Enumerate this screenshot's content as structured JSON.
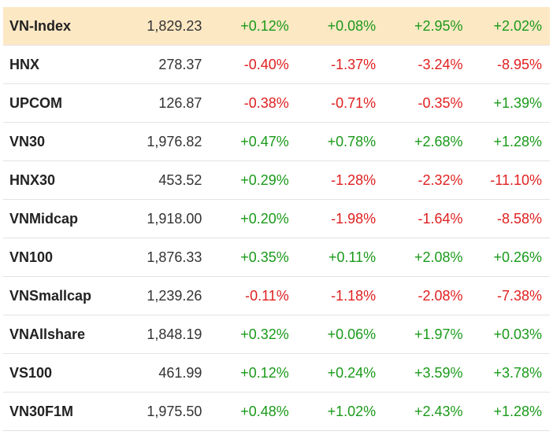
{
  "table": {
    "rows": [
      {
        "name": "VN-Index",
        "value": "1,829.23",
        "changes": [
          "+0.12%",
          "+0.08%",
          "+2.95%",
          "+2.02%"
        ],
        "highlight": true
      },
      {
        "name": "HNX",
        "value": "278.37",
        "changes": [
          "-0.40%",
          "-1.37%",
          "-3.24%",
          "-8.95%"
        ],
        "highlight": false
      },
      {
        "name": "UPCOM",
        "value": "126.87",
        "changes": [
          "-0.38%",
          "-0.71%",
          "-0.35%",
          "+1.39%"
        ],
        "highlight": false
      },
      {
        "name": "VN30",
        "value": "1,976.82",
        "changes": [
          "+0.47%",
          "+0.78%",
          "+2.68%",
          "+1.28%"
        ],
        "highlight": false
      },
      {
        "name": "HNX30",
        "value": "453.52",
        "changes": [
          "+0.29%",
          "-1.28%",
          "-2.32%",
          "-11.10%"
        ],
        "highlight": false
      },
      {
        "name": "VNMidcap",
        "value": "1,918.00",
        "changes": [
          "+0.20%",
          "-1.98%",
          "-1.64%",
          "-8.58%"
        ],
        "highlight": false
      },
      {
        "name": "VN100",
        "value": "1,876.33",
        "changes": [
          "+0.35%",
          "+0.11%",
          "+2.08%",
          "+0.26%"
        ],
        "highlight": false
      },
      {
        "name": "VNSmallcap",
        "value": "1,239.26",
        "changes": [
          "-0.11%",
          "-1.18%",
          "-2.08%",
          "-7.38%"
        ],
        "highlight": false
      },
      {
        "name": "VNAllshare",
        "value": "1,848.19",
        "changes": [
          "+0.32%",
          "+0.06%",
          "+1.97%",
          "+0.03%"
        ],
        "highlight": false
      },
      {
        "name": "VS100",
        "value": "461.99",
        "changes": [
          "+0.12%",
          "+0.24%",
          "+3.59%",
          "+3.78%"
        ],
        "highlight": false
      },
      {
        "name": "VN30F1M",
        "value": "1,975.50",
        "changes": [
          "+0.48%",
          "+1.02%",
          "+2.43%",
          "+1.28%"
        ],
        "highlight": false
      }
    ]
  },
  "colors": {
    "positive": "#1a9a1a",
    "negative": "#e02020",
    "highlight_row": "#fde8c4",
    "row_border": "#e3e3e3"
  }
}
